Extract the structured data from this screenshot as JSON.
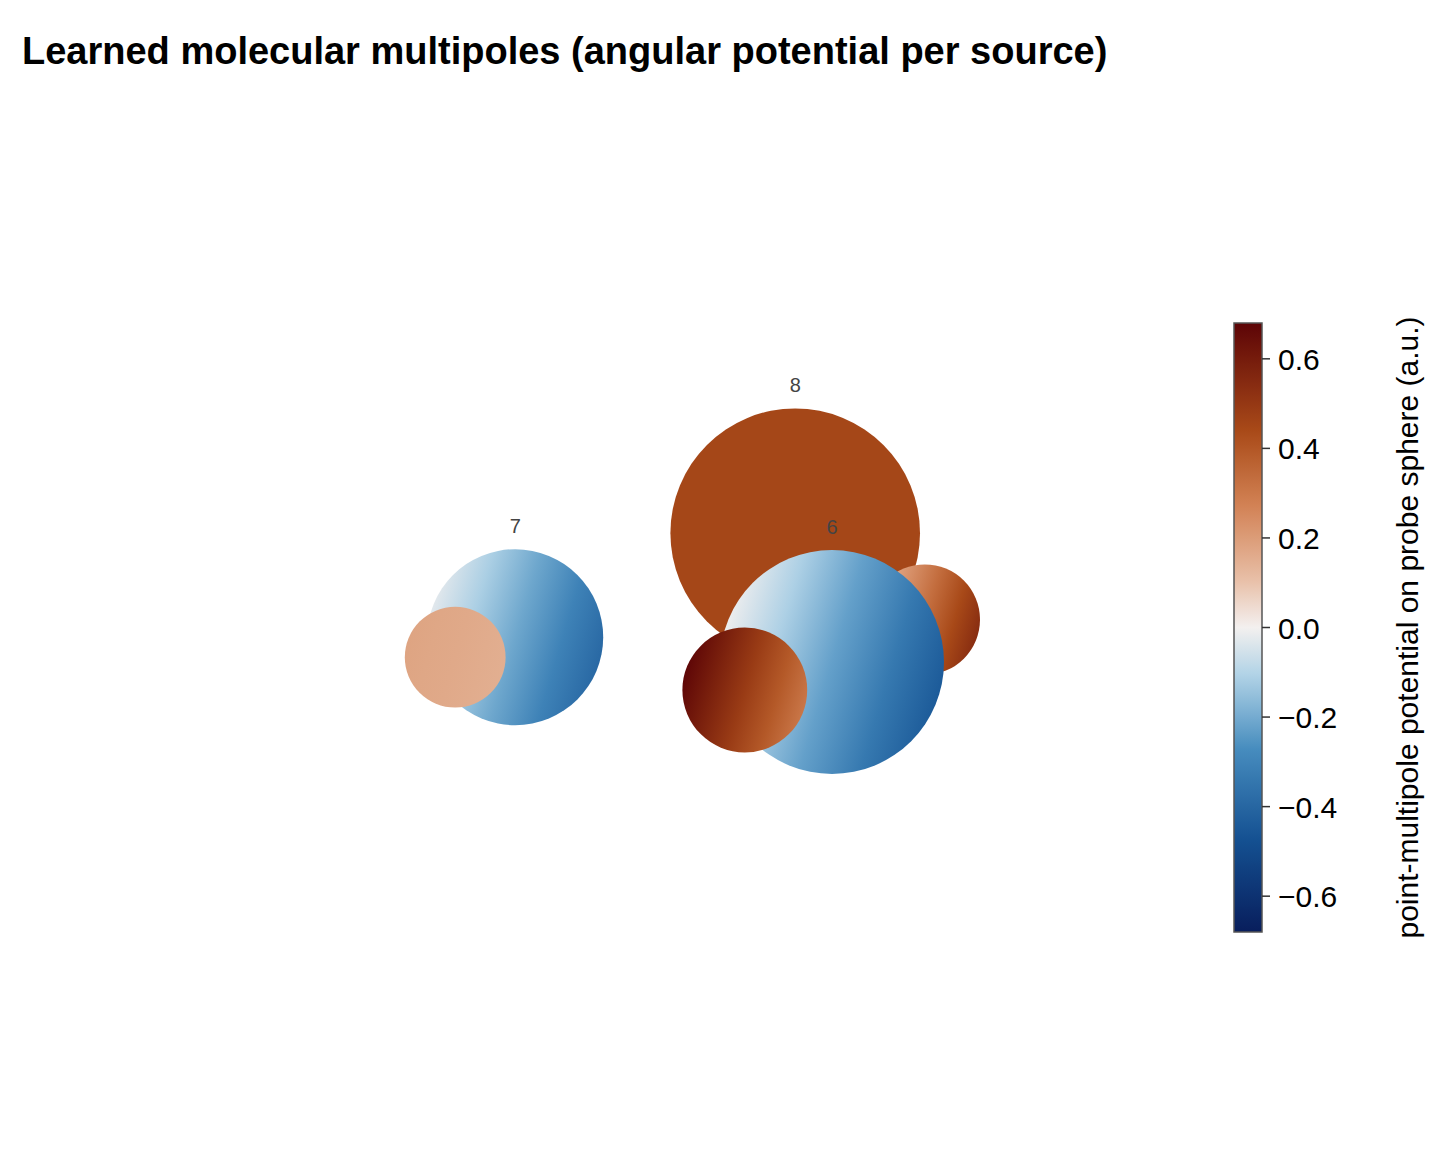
{
  "chart_data": {
    "type": "multipole_spheres",
    "title": "Learned molecular multipoles (angular potential per source)",
    "xlim": [
      0,
      10
    ],
    "ylim": [
      0,
      10
    ],
    "tick_labels": false,
    "grid": false,
    "sources": [
      {
        "label": "8",
        "x": 6.19,
        "y": 6.21,
        "r": 1.56,
        "potential": [
          0.45,
          0.45
        ]
      },
      {
        "label": null,
        "x": 7.81,
        "y": 5.13,
        "r": 0.69,
        "potential": [
          0.12,
          0.55
        ]
      },
      {
        "label": "6",
        "x": 6.65,
        "y": 4.6,
        "r": 1.4,
        "potential": [
          0.0,
          -0.45
        ]
      },
      {
        "label": null,
        "x": 5.56,
        "y": 4.25,
        "r": 0.78,
        "potential": [
          0.68,
          0.3
        ]
      },
      {
        "label": "7",
        "x": 2.69,
        "y": 4.91,
        "r": 1.1,
        "potential": [
          -0.02,
          -0.4
        ]
      },
      {
        "label": null,
        "x": 1.94,
        "y": 4.66,
        "r": 0.63,
        "potential": [
          0.18,
          0.15
        ]
      }
    ],
    "colorbar": {
      "label": "point-multipole potential on probe sphere (a.u.)",
      "clim": [
        -0.68,
        0.68
      ],
      "ticks": [
        {
          "value": -0.6,
          "label": "−0.6"
        },
        {
          "value": -0.4,
          "label": "−0.4"
        },
        {
          "value": -0.2,
          "label": "−0.2"
        },
        {
          "value": 0.0,
          "label": "0.0"
        },
        0.2,
        0.4,
        0.6
      ]
    }
  }
}
